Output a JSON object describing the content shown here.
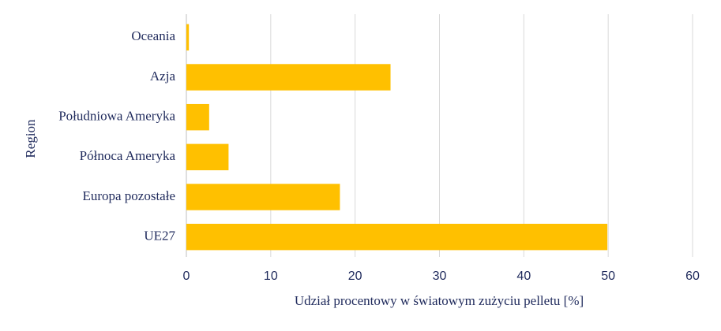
{
  "chart_data": {
    "type": "bar",
    "orientation": "horizontal",
    "x_label": "Udział procentowy w światowym zużyciu pelletu [%]",
    "y_label": "Region",
    "categories": [
      "Oceania",
      "Azja",
      "Południowa Ameryka",
      "Północa Ameryka",
      "Europa pozostałe",
      "UE27"
    ],
    "values": [
      0.3,
      24.2,
      2.7,
      5.0,
      18.2,
      49.9
    ],
    "color": "#ffc000",
    "xlim": [
      0,
      60
    ],
    "xticks": [
      0,
      10,
      20,
      30,
      40,
      50,
      60
    ],
    "grid": true
  }
}
